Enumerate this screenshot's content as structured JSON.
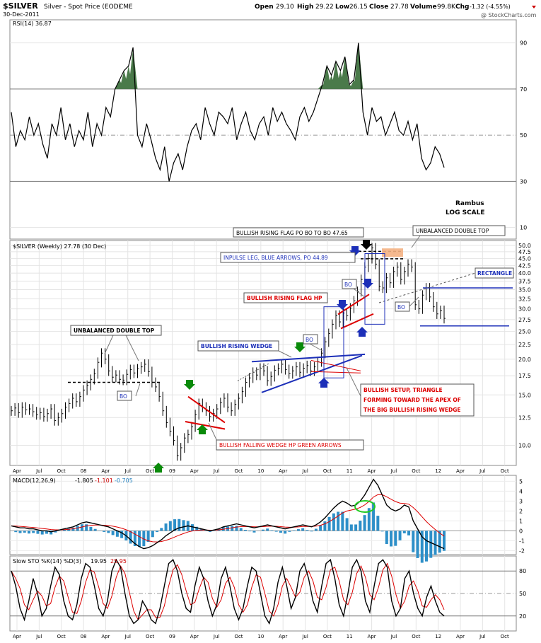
{
  "header": {
    "symbol": "$SILVER",
    "description": "Silver - Spot Price (EOD)",
    "exchange": "CME",
    "date": "30-Dec-2011",
    "open_label": "Open",
    "open": "29.10",
    "high_label": "High",
    "high": "29.22",
    "low_label": "Low",
    "low": "26.15",
    "close_label": "Close",
    "close": "27.78",
    "volume_label": "Volume",
    "volume": "99.8K",
    "chg_label": "Chg",
    "chg": "-1.32 (-4.55%)",
    "watermark": "@ StockCharts.com"
  },
  "annotations": {
    "rambus": "Rambus",
    "log_scale": "LOG SCALE",
    "flag_po": "BULLISH RISING FLAG PO BO TO BO 47.65",
    "unbalanced_top_right": "UNBALANCED DOUBLE TOP",
    "impulse_leg": "INPULSE LEG, BLUE ARROWS, PO 44.89",
    "rectangle": "RECTANGLE",
    "flag_hp": "BULLISH RISING FLAG HP",
    "unbalanced_top_left": "UNBALANCED DOUBLE TOP",
    "rising_wedge": "BULLISH RISING WEDGE",
    "setup_1": "BULLISH SETUP, TRIANGLE",
    "setup_2": "FORMING TOWARD THE APEX OF",
    "setup_3": "THE BIG BULLISH RISING WEDGE",
    "falling_wedge": "BULLISH FALLING WEDGE HP GREEN ARROWS",
    "bo": "BO"
  },
  "chart_data": [
    {
      "type": "line",
      "panel": "rsi",
      "legend": "RSI(14) 36.87",
      "series_name": "RSI(14)",
      "last_value": 36.87,
      "y_ticks": [
        "90",
        "70",
        "50",
        "30",
        "10"
      ],
      "y_tick_values": [
        90,
        70,
        50,
        30,
        10
      ],
      "ylim": [
        5,
        100
      ],
      "reference_lines": [
        70,
        50,
        30
      ],
      "values": [
        60,
        45,
        52,
        48,
        58,
        50,
        55,
        46,
        40,
        55,
        50,
        62,
        48,
        55,
        45,
        52,
        48,
        60,
        45,
        55,
        50,
        62,
        58,
        70,
        74,
        78,
        80,
        88,
        50,
        45,
        55,
        48,
        40,
        35,
        45,
        30,
        38,
        42,
        35,
        45,
        52,
        55,
        48,
        62,
        55,
        50,
        60,
        58,
        55,
        62,
        48,
        55,
        60,
        52,
        48,
        55,
        58,
        50,
        62,
        56,
        60,
        55,
        52,
        48,
        58,
        62,
        56,
        60,
        66,
        72,
        80,
        76,
        82,
        78,
        84,
        72,
        74,
        90,
        60,
        50,
        62,
        56,
        58,
        50,
        55,
        60,
        52,
        50,
        56,
        48,
        55,
        40,
        35,
        38,
        45,
        42,
        36
      ]
    },
    {
      "type": "bar",
      "panel": "price",
      "legend": "$SILVER (Weekly) 27.78 (30 Dec)",
      "scale": "log",
      "ylim": [
        8.5,
        52
      ],
      "y_ticks": [
        "50.0",
        "47.5",
        "45.0",
        "42.5",
        "40.0",
        "37.5",
        "35.0",
        "32.5",
        "30.0",
        "27.5",
        "25.0",
        "22.5",
        "20.0",
        "17.5",
        "15.0",
        "12.5",
        "10.0"
      ],
      "y_tick_values": [
        50,
        47.5,
        45,
        42.5,
        40,
        37.5,
        35,
        32.5,
        30,
        27.5,
        25,
        22.5,
        20,
        17.5,
        15,
        12.5,
        10
      ],
      "x_ticks": [
        "Apr",
        "Jul",
        "Oct",
        "08",
        "Apr",
        "Jul",
        "Oct",
        "09",
        "Apr",
        "Jul",
        "Oct",
        "10",
        "Apr",
        "Jul",
        "Oct",
        "11",
        "Apr",
        "Jul",
        "Oct",
        "12",
        "Apr",
        "Jul",
        "Oct"
      ],
      "last_close": 27.78,
      "closes": [
        13.2,
        13.5,
        13.0,
        13.6,
        13.3,
        13.4,
        13.1,
        12.8,
        13.0,
        12.6,
        12.9,
        13.4,
        12.2,
        12.5,
        12.9,
        13.6,
        14.0,
        14.6,
        14.2,
        14.8,
        15.6,
        16.2,
        17.0,
        17.8,
        19.5,
        21.0,
        20.0,
        18.2,
        17.3,
        17.6,
        17.0,
        16.9,
        17.7,
        18.4,
        17.9,
        18.5,
        18.8,
        19.2,
        18.1,
        16.6,
        16.0,
        14.8,
        13.2,
        12.0,
        11.2,
        10.4,
        9.2,
        9.8,
        10.6,
        10.9,
        11.6,
        12.8,
        14.0,
        13.6,
        13.2,
        12.6,
        12.9,
        13.4,
        14.1,
        14.6,
        13.6,
        13.2,
        13.9,
        14.6,
        15.4,
        16.6,
        17.2,
        18.0,
        17.6,
        18.6,
        18.2,
        16.8,
        17.4,
        18.3,
        18.6,
        19.2,
        18.4,
        17.8,
        18.2,
        18.8,
        18.0,
        18.6,
        19.0,
        18.2,
        18.8,
        19.6,
        21.0,
        23.0,
        24.6,
        26.5,
        28.5,
        27.0,
        29.0,
        28.4,
        30.2,
        32.0,
        34.5,
        38.0,
        42.0,
        45.0,
        49.0,
        43.0,
        36.0,
        35.5,
        38.5,
        37.0,
        40.5,
        42.0,
        38.0,
        40.5,
        43.0,
        42.0,
        31.0,
        30.0,
        33.5,
        35.5,
        33.0,
        30.5,
        28.8,
        29.6,
        27.78
      ],
      "levels": {
        "flag_po": 47.65,
        "impulse_po": 44.89,
        "rectangle_top": 35.5,
        "rectangle_bottom": 26.15,
        "neckline_left": 16.6
      }
    },
    {
      "type": "line",
      "panel": "macd",
      "legend_label": "MACD(12,26,9)",
      "macd_value": "-1.805",
      "signal_value": "-1.101",
      "hist_value": "-0.705",
      "y_ticks": [
        "5",
        "4",
        "3",
        "2",
        "1",
        "0",
        "-1",
        "-2"
      ],
      "y_tick_values": [
        5,
        4,
        3,
        2,
        1,
        0,
        -1,
        -2
      ],
      "ylim": [
        -2.4,
        5.6
      ],
      "macd": [
        0.5,
        0.4,
        0.3,
        0.3,
        0.2,
        0.2,
        0.1,
        0.0,
        0.0,
        -0.1,
        0.0,
        0.1,
        0.2,
        0.3,
        0.4,
        0.6,
        0.8,
        0.9,
        0.8,
        0.7,
        0.6,
        0.5,
        0.4,
        0.2,
        0.0,
        -0.2,
        -0.5,
        -0.9,
        -1.3,
        -1.6,
        -1.8,
        -1.7,
        -1.5,
        -1.2,
        -0.9,
        -0.5,
        -0.2,
        0.1,
        0.3,
        0.4,
        0.5,
        0.4,
        0.3,
        0.2,
        0.1,
        0.0,
        0.1,
        0.2,
        0.4,
        0.5,
        0.6,
        0.7,
        0.6,
        0.5,
        0.4,
        0.3,
        0.4,
        0.5,
        0.6,
        0.5,
        0.4,
        0.3,
        0.2,
        0.3,
        0.4,
        0.5,
        0.6,
        0.5,
        0.4,
        0.6,
        0.9,
        1.3,
        1.8,
        2.3,
        2.7,
        3.0,
        2.8,
        2.5,
        2.6,
        3.0,
        3.6,
        4.4,
        5.2,
        4.6,
        3.6,
        2.6,
        2.2,
        2.0,
        2.2,
        2.6,
        2.4,
        1.0,
        0.2,
        -0.6,
        -1.0,
        -1.2,
        -1.4,
        -1.6,
        -1.8
      ]
    },
    {
      "type": "line",
      "panel": "stochastic",
      "legend_label": "Slow STO %K(14) %D(3)",
      "k_value": "19.95",
      "d_value": "25.95",
      "y_ticks": [
        "80",
        "50",
        "20"
      ],
      "y_tick_values": [
        80,
        50,
        20
      ],
      "ylim": [
        0,
        100
      ],
      "reference_lines": [
        80,
        50,
        20
      ],
      "k": [
        80,
        60,
        30,
        15,
        40,
        70,
        50,
        20,
        30,
        60,
        85,
        75,
        40,
        20,
        15,
        35,
        70,
        90,
        85,
        60,
        30,
        20,
        40,
        80,
        95,
        85,
        50,
        20,
        10,
        15,
        40,
        30,
        15,
        10,
        30,
        60,
        90,
        95,
        80,
        50,
        30,
        25,
        60,
        85,
        70,
        40,
        20,
        35,
        70,
        85,
        60,
        30,
        15,
        30,
        60,
        85,
        80,
        50,
        20,
        10,
        30,
        65,
        85,
        60,
        30,
        45,
        80,
        90,
        70,
        40,
        25,
        60,
        90,
        95,
        70,
        35,
        20,
        50,
        85,
        95,
        80,
        40,
        25,
        60,
        90,
        95,
        85,
        40,
        20,
        30,
        70,
        80,
        50,
        30,
        20,
        45,
        60,
        40,
        25,
        20
      ]
    },
    {
      "type": "axis",
      "panel": "bottom_axis",
      "x_ticks": [
        "Apr",
        "Jul",
        "Oct",
        "08",
        "Apr",
        "Jul",
        "Oct",
        "09",
        "Apr",
        "Jul",
        "Oct",
        "10",
        "Apr",
        "Jul",
        "Oct",
        "11",
        "Apr",
        "Jul",
        "Oct",
        "12",
        "Apr",
        "Jul",
        "Oct"
      ]
    }
  ]
}
